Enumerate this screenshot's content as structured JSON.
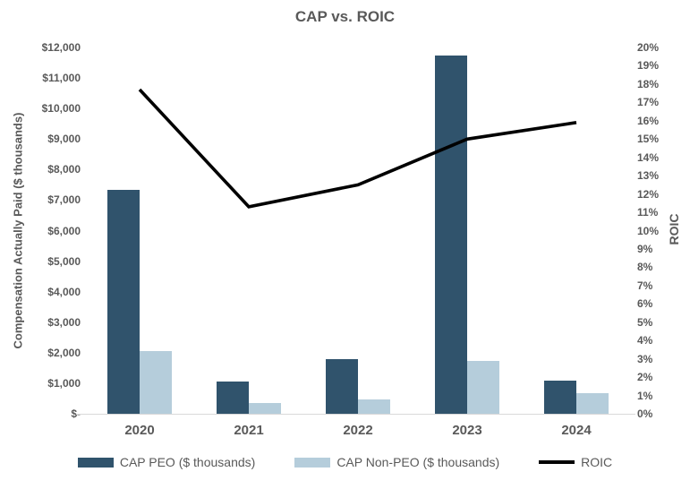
{
  "title": "CAP vs. ROIC",
  "chart_data": {
    "type": "combo_bar_line",
    "categories": [
      "2020",
      "2021",
      "2022",
      "2023",
      "2024"
    ],
    "bar_series": [
      {
        "name": "CAP PEO ($ thousands)",
        "color": "#30536C",
        "values": [
          7350,
          1050,
          1800,
          11750,
          1100
        ]
      },
      {
        "name": "CAP Non-PEO ($ thousands)",
        "color": "#B5CDDB",
        "values": [
          2050,
          350,
          480,
          1730,
          680
        ]
      }
    ],
    "line_series": {
      "name": "ROIC",
      "color": "#000000",
      "values_percent": [
        17.7,
        11.3,
        12.5,
        15.0,
        15.9
      ]
    },
    "left_axis": {
      "label": "Compensation Actually Paid ($ thousands)",
      "min": 0,
      "max": 12000,
      "step": 1000,
      "tick_labels": [
        "$-",
        "$1,000",
        "$2,000",
        "$3,000",
        "$4,000",
        "$5,000",
        "$6,000",
        "$7,000",
        "$8,000",
        "$9,000",
        "$10,000",
        "$11,000",
        "$12,000"
      ]
    },
    "right_axis": {
      "label": "ROIC",
      "min": 0,
      "max": 20,
      "step": 1,
      "tick_labels": [
        "0%",
        "1%",
        "2%",
        "3%",
        "4%",
        "5%",
        "6%",
        "7%",
        "8%",
        "9%",
        "10%",
        "11%",
        "12%",
        "13%",
        "14%",
        "15%",
        "16%",
        "17%",
        "18%",
        "19%",
        "20%"
      ]
    },
    "grid": false,
    "legend_position": "bottom"
  },
  "legend": {
    "items": [
      {
        "label": "CAP PEO ($ thousands)",
        "swatch": "bar",
        "color": "#30536C"
      },
      {
        "label": "CAP Non-PEO ($ thousands)",
        "swatch": "bar",
        "color": "#B5CDDB"
      },
      {
        "label": "ROIC",
        "swatch": "line",
        "color": "#000000"
      }
    ]
  },
  "colors": {
    "text": "#595959",
    "baseline": "#D9D9D9",
    "background": "#FFFFFF"
  }
}
